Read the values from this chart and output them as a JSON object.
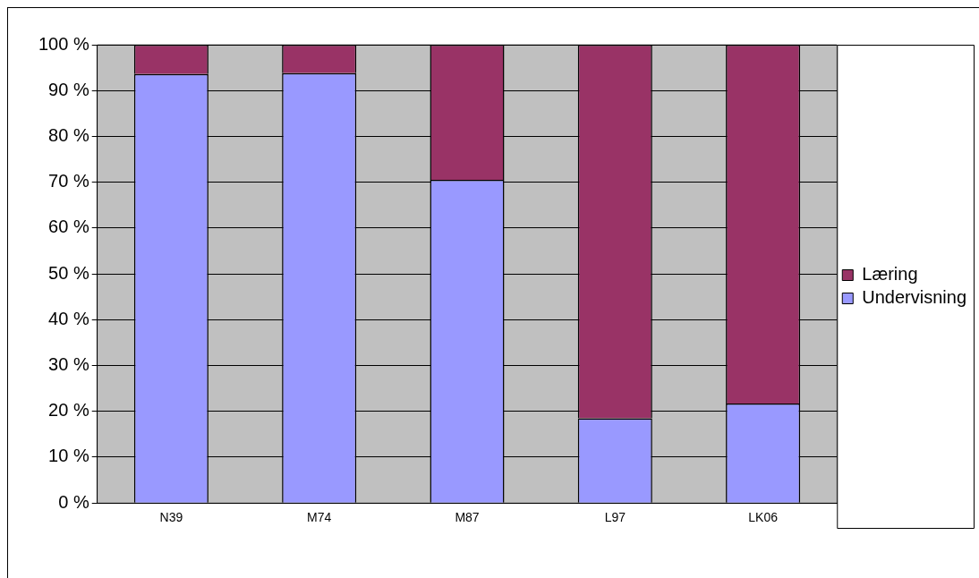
{
  "chart_data": {
    "type": "bar",
    "stacked": true,
    "categories": [
      "N39",
      "M74",
      "M87",
      "L97",
      "LK06"
    ],
    "series": [
      {
        "name": "Undervisning",
        "color": "#9999ff",
        "values": [
          93.6,
          93.8,
          70.5,
          18.5,
          21.7
        ]
      },
      {
        "name": "Læring",
        "color": "#993366",
        "values": [
          6.4,
          6.2,
          29.5,
          81.5,
          78.3
        ]
      }
    ],
    "ylim": [
      0,
      100
    ],
    "yticks": [
      {
        "value": 0,
        "label": "0 %"
      },
      {
        "value": 10,
        "label": "10 %"
      },
      {
        "value": 20,
        "label": "20 %"
      },
      {
        "value": 30,
        "label": "30 %"
      },
      {
        "value": 40,
        "label": "40 %"
      },
      {
        "value": 50,
        "label": "50 %"
      },
      {
        "value": 60,
        "label": "60 %"
      },
      {
        "value": 70,
        "label": "70 %"
      },
      {
        "value": 80,
        "label": "80 %"
      },
      {
        "value": 90,
        "label": "90 %"
      },
      {
        "value": 100,
        "label": "100 %"
      }
    ],
    "grid": "y",
    "legend": "right"
  }
}
